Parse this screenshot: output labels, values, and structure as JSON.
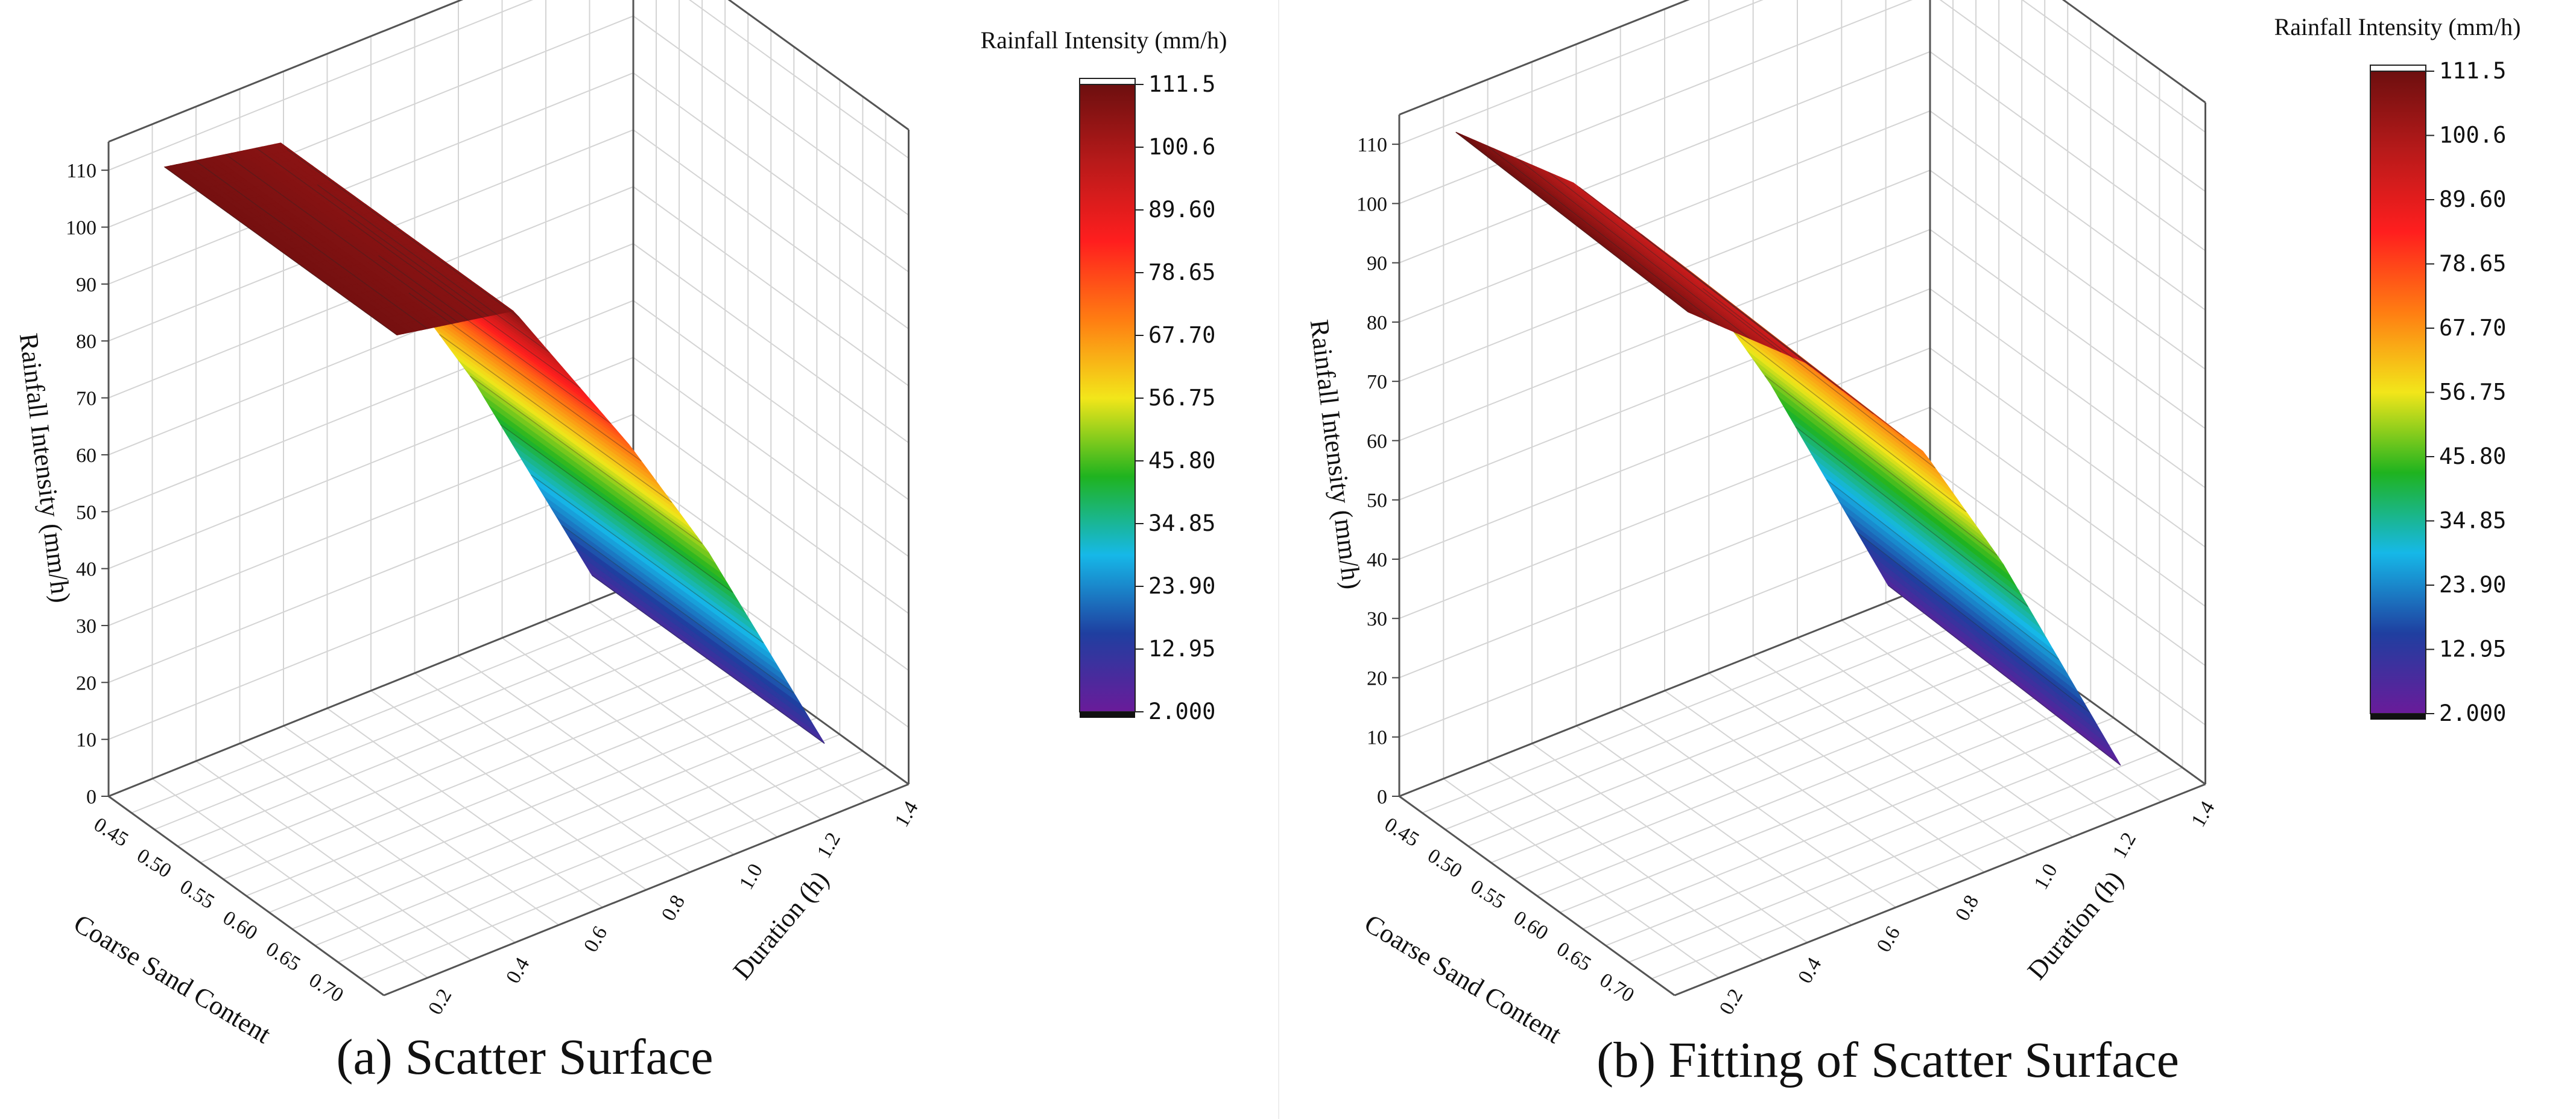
{
  "colors": {
    "stops": [
      "#6a1b9a",
      "#1f3fa0",
      "#16b8e8",
      "#1fb31f",
      "#f2e61a",
      "#ff7d12",
      "#ff1e1e",
      "#b81a1a",
      "#6d0f0f"
    ]
  },
  "chart_data": [
    {
      "type": "surface3d",
      "caption": "(a) Scatter Surface",
      "zlabel": "Rainfall Intensity (mm/h)",
      "xlabel": "Coarse Sand Content",
      "ylabel": "Duration (h)",
      "zticks": [
        "0",
        "10",
        "20",
        "30",
        "40",
        "50",
        "60",
        "70",
        "80",
        "90",
        "100",
        "110"
      ],
      "xticks": [
        "0.45",
        "0.50",
        "0.55",
        "0.60",
        "0.65",
        "0.70"
      ],
      "yticks": [
        "0.2",
        "0.4",
        "0.6",
        "0.8",
        "1.0",
        "1.2",
        "1.4"
      ],
      "zlim": [
        0,
        115
      ],
      "xlim": [
        0.43,
        0.75
      ],
      "ylim": [
        0.1,
        1.45
      ],
      "colorbar": {
        "title": "Rainfall Intensity (mm/h)",
        "ticks": [
          "111.5",
          "100.6",
          "89.60",
          "78.65",
          "67.70",
          "56.75",
          "45.80",
          "34.85",
          "23.90",
          "12.95",
          "2.000"
        ],
        "range": [
          2.0,
          111.5
        ]
      },
      "surface": {
        "duration": [
          0.2,
          0.5,
          0.8,
          1.0,
          1.3
        ],
        "intensity_at_min_sand": [
          110,
          106,
          74,
          50,
          8
        ],
        "drop_at_max_sand": 0
      }
    },
    {
      "type": "surface3d",
      "caption": "(b) Fitting of Scatter Surface",
      "zlabel": "Rainfall Intensity (mm/h)",
      "xlabel": "Coarse Sand Content",
      "ylabel": "Duration (h)",
      "zticks": [
        "0",
        "10",
        "20",
        "30",
        "40",
        "50",
        "60",
        "70",
        "80",
        "90",
        "100",
        "110"
      ],
      "xticks": [
        "0.45",
        "0.50",
        "0.55",
        "0.60",
        "0.65",
        "0.70"
      ],
      "yticks": [
        "0.2",
        "0.4",
        "0.6",
        "0.8",
        "1.0",
        "1.2",
        "1.4"
      ],
      "zlim": [
        0,
        115
      ],
      "xlim": [
        0.43,
        0.75
      ],
      "ylim": [
        0.1,
        1.45
      ],
      "colorbar": {
        "title": "Rainfall Intensity (mm/h)",
        "ticks": [
          "111.5",
          "100.6",
          "89.60",
          "78.65",
          "67.70",
          "56.75",
          "45.80",
          "34.85",
          "23.90",
          "12.95",
          "2.000"
        ],
        "range": [
          2.0,
          111.5
        ]
      },
      "surface": {
        "duration": [
          0.2,
          0.5,
          0.8,
          1.0,
          1.3
        ],
        "intensity_at_min_sand": [
          111.5,
          95,
          72,
          48,
          6
        ],
        "drop_at_max_sand": 2
      }
    }
  ]
}
